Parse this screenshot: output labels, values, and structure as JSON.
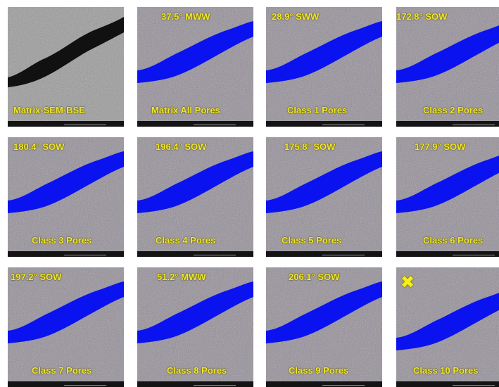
{
  "panels": [
    {
      "top": "",
      "bottom": "Matrix-SEM-BSE"
    },
    {
      "top": "37.5° MWW",
      "bottom": "Matrix All Pores"
    },
    {
      "top": "28.9° SWW",
      "bottom": "Class 1 Pores"
    },
    {
      "top": "172.8° SOW",
      "bottom": "Class 2 Pores"
    },
    {
      "top": "180.4° SOW",
      "bottom": "Class 3 Pores"
    },
    {
      "top": "196.4° SOW",
      "bottom": "Class 4 Pores"
    },
    {
      "top": "175.8° SOW",
      "bottom": "Class 5 Pores"
    },
    {
      "top": "177.9° SOW",
      "bottom": "Class 6 Pores"
    },
    {
      "top": "197.2° SOW",
      "bottom": "Class 7 Pores"
    },
    {
      "top": "51.2° MWW",
      "bottom": "Class 8 Pores"
    },
    {
      "top": "206.1° SOW",
      "bottom": "Class 9 Pores"
    },
    {
      "top": "",
      "bottom": "Class 10 Pores",
      "marker": "✖"
    }
  ],
  "colors": {
    "pore_fill": "#0a12f0",
    "label": "#f2e62c",
    "matrix": "#8e8e8e",
    "crack_sem": "#111111"
  }
}
